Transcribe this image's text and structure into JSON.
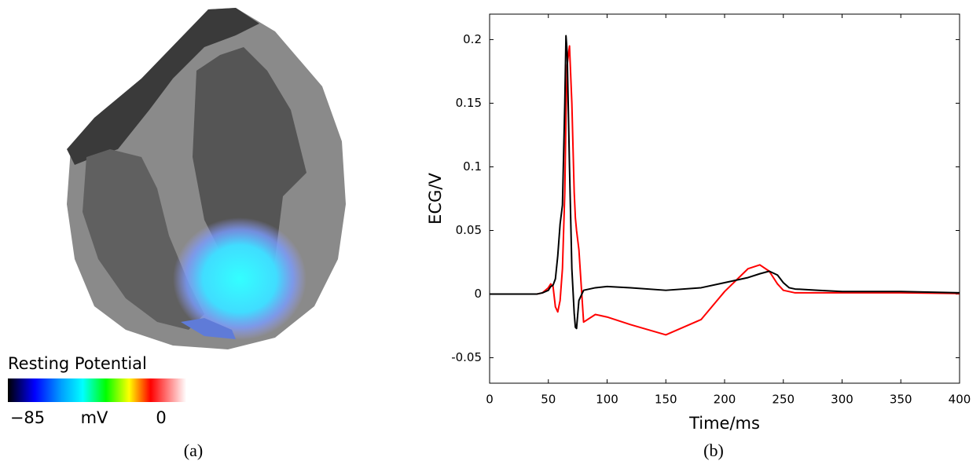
{
  "panel_a": {
    "colorbar_title": "Resting Potential",
    "colorbar_ticks": [
      {
        "value": -85,
        "label": "−85"
      },
      0
    ],
    "colorbar_unit": "mV",
    "label": "(a)"
  },
  "chart_data": {
    "type": "line",
    "label": "(b)",
    "xlabel": "Time/ms",
    "ylabel": "ECG/V",
    "x": [
      0,
      40,
      45,
      50,
      52,
      54,
      56,
      58,
      60,
      62,
      64,
      65,
      66,
      68,
      70,
      72,
      73,
      74,
      76,
      80,
      90,
      100,
      120,
      150,
      180,
      200,
      220,
      230,
      238,
      245,
      250,
      255,
      260,
      280,
      300,
      350,
      400
    ],
    "series": [
      {
        "color": "#000000",
        "values": [
          0,
          0,
          0.001,
          0.003,
          0.006,
          0.007,
          0.012,
          0.03,
          0.055,
          0.07,
          0.15,
          0.203,
          0.19,
          0.1,
          0.02,
          -0.015,
          -0.026,
          -0.027,
          -0.005,
          0.003,
          0.005,
          0.006,
          0.005,
          0.003,
          0.005,
          0.009,
          0.013,
          0.016,
          0.018,
          0.015,
          0.009,
          0.005,
          0.004,
          0.003,
          0.002,
          0.002,
          0.001
        ]
      },
      {
        "color": "#ff0000",
        "values": [
          0,
          0,
          0.001,
          0.005,
          0.008,
          0.006,
          -0.01,
          -0.014,
          -0.005,
          0.02,
          0.08,
          0.14,
          0.18,
          0.195,
          0.15,
          0.08,
          0.06,
          0.05,
          0.035,
          -0.022,
          -0.016,
          -0.018,
          -0.024,
          -0.032,
          -0.02,
          0.002,
          0.02,
          0.023,
          0.018,
          0.008,
          0.003,
          0.002,
          0.001,
          0.001,
          0.001,
          0.001,
          0.0005
        ]
      }
    ],
    "xlim": [
      0,
      400
    ],
    "xticks": [
      0,
      50,
      100,
      150,
      200,
      250,
      300,
      350,
      400
    ],
    "ylim": [
      -0.07,
      0.22
    ],
    "yticks": [
      -0.05,
      0,
      0.05,
      0.1,
      0.15,
      0.2
    ],
    "grid": false
  }
}
